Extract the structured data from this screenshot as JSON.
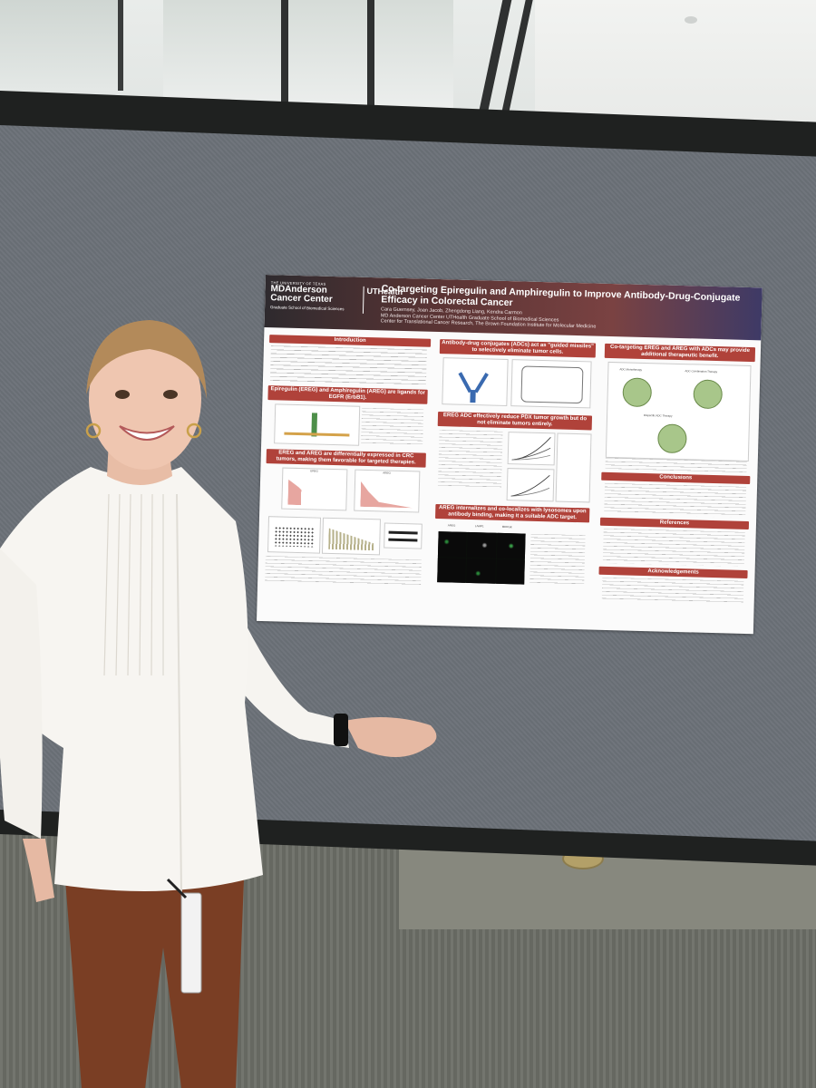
{
  "poster": {
    "logo": {
      "mda_line1": "THE UNIVERSITY OF TEXAS",
      "mda_line2a": "MDAnderson",
      "mda_line2b": "Cancer Center",
      "ut_name": "UTHealth",
      "gsbs": "Graduate School of Biomedical Sciences"
    },
    "title": "Co-targeting Epiregulin and Amphiregulin to Improve Antibody-Drug-Conjugate Efficacy in Colorectal Cancer",
    "authors": "Cara Guernsey, Joan Jacob, Zhengdong Liang, Kendra Carmon",
    "affiliation1": "MD Anderson Cancer Center UTHealth Graduate School of Biomedical Sciences",
    "affiliation2": "Center for Translational Cancer Research, The Brown Foundation Institute for Molecular Medicine",
    "sections": {
      "intro": "Introduction",
      "ligands": "Epiregulin (EREG) and Amphiregulin (AREG) are ligands for EGFR (ErbB1).",
      "expression": "EREG and AREG are differentially expressed in CRC tumors, making them favorable for targeted therapies.",
      "adc": "Antibody-drug conjugates (ADCs) act as \"guided missiles\" to selectively eliminate tumor cells.",
      "pdx": "EREG ADC effectively reduce PDX tumor growth but do not eliminate tumors entirely.",
      "internalize": "AREG internalizes and co-localizes with lysosomes upon antibody binding, making it a suitable ADC target.",
      "cotarget": "Co-targeting EREG and AREG with ADCs may provide additional therapeutic benefit.",
      "conclusions": "Conclusions",
      "references": "References",
      "acknowledgements": "Acknowledgements"
    },
    "panel_labels": {
      "ereg": "EREG",
      "areg": "AREG",
      "lamp1": "LAMP1",
      "merge": "MERGE",
      "adc_mono": "ADC Monotherapy",
      "adc_combo": "ADC Combination Therapy",
      "bispecific": "Bispecific ADC Therapy"
    }
  }
}
